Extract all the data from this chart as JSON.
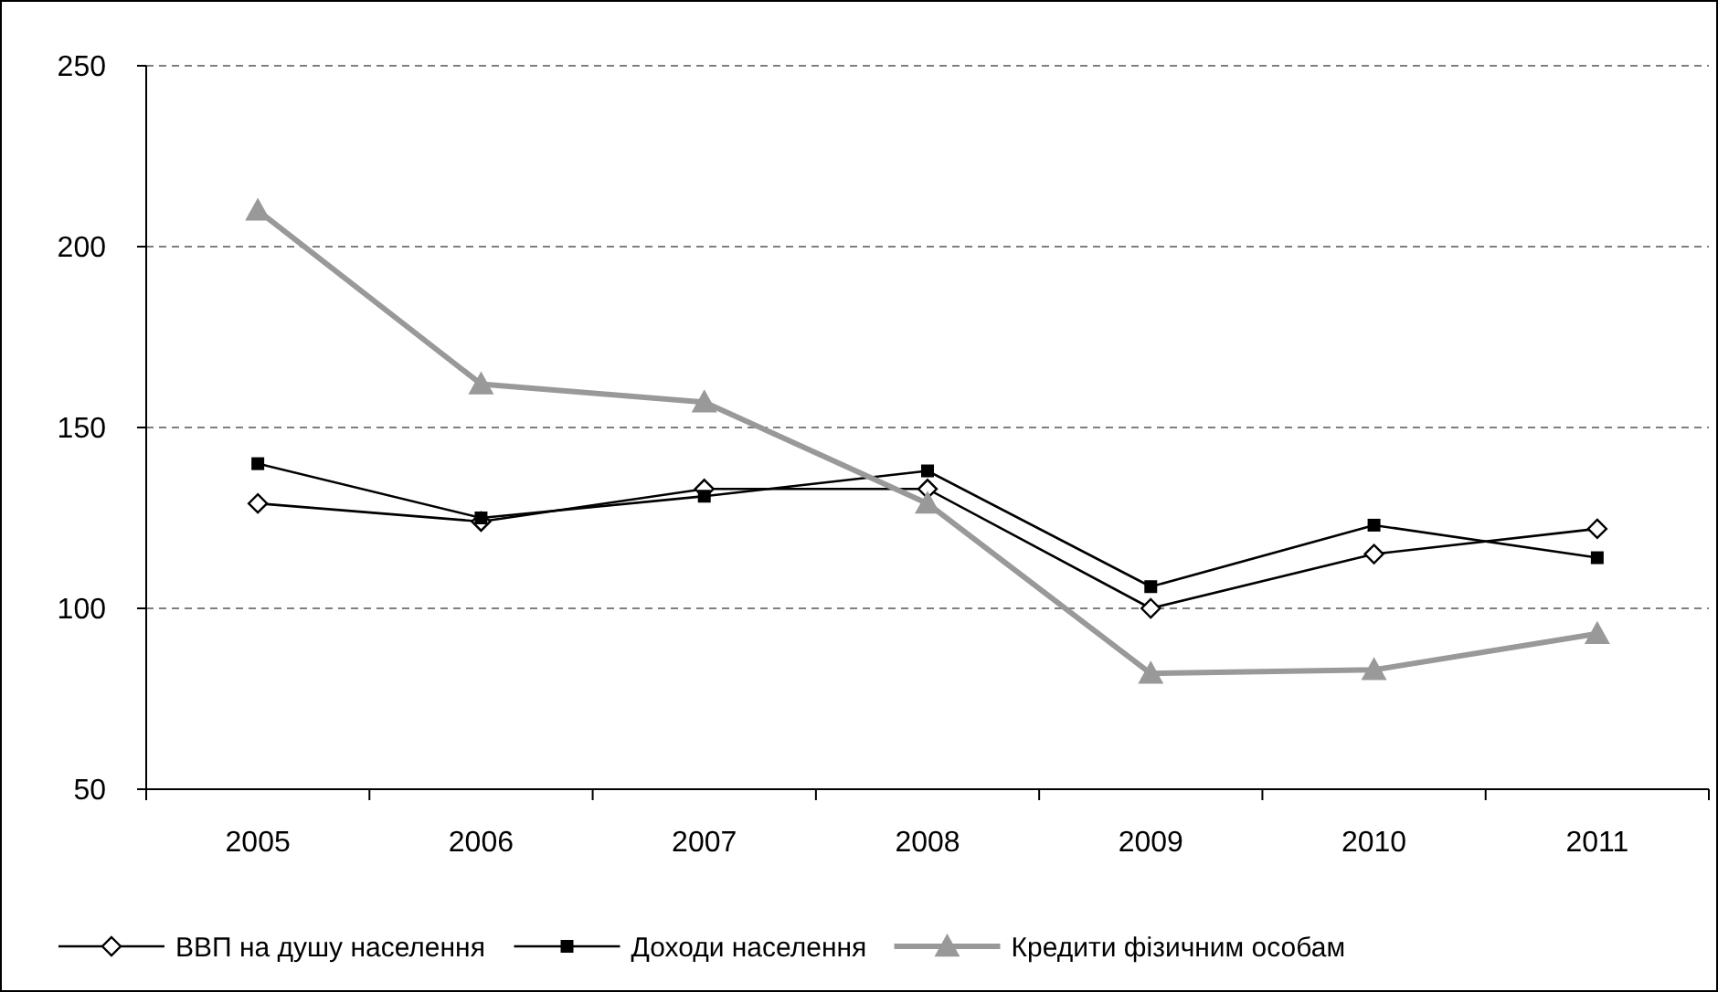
{
  "chart_data": {
    "type": "line",
    "categories": [
      "2005",
      "2006",
      "2007",
      "2008",
      "2009",
      "2010",
      "2011"
    ],
    "series": [
      {
        "name": "ВВП на душу населення",
        "color": "#000000",
        "marker": "diamond",
        "values": [
          129,
          124,
          133,
          133,
          100,
          115,
          122
        ]
      },
      {
        "name": "Доходи населення",
        "color": "#000000",
        "marker": "square",
        "values": [
          140,
          125,
          131,
          138,
          106,
          123,
          114
        ]
      },
      {
        "name": "Кредити фізичним особам",
        "color": "#999999",
        "marker": "triangle",
        "values": [
          210,
          162,
          157,
          129,
          82,
          83,
          93
        ]
      }
    ],
    "ylim": [
      50,
      250
    ],
    "yticks": [
      50,
      100,
      150,
      200,
      250
    ],
    "grid": "y",
    "legend": "bottom",
    "line_style": "solid"
  }
}
